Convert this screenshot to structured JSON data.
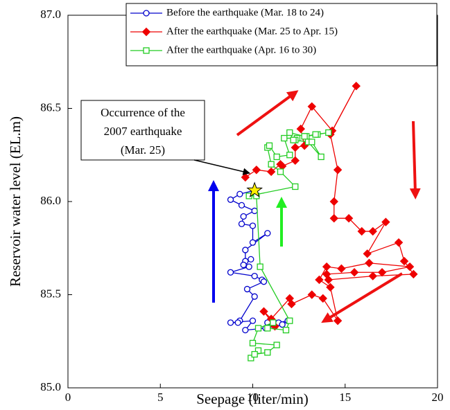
{
  "chart_data": {
    "type": "line",
    "xlabel": "Seepage (liter/min)",
    "ylabel": "Reservoir water level (EL.m)",
    "xlim": [
      0,
      20
    ],
    "xticks": [
      0,
      5,
      10,
      15,
      20
    ],
    "ylim": [
      85.0,
      87.0
    ],
    "yticks": [
      {
        "value": 85.0,
        "label": "85.0"
      },
      {
        "value": 85.5,
        "label": "85.5"
      },
      {
        "value": 86.0,
        "label": "86.0"
      },
      {
        "value": 86.5,
        "label": "86.5"
      },
      {
        "value": 87.0,
        "label": "87.0"
      }
    ],
    "annotation": {
      "lines": [
        "Occurrence of the",
        "2007 earthquake",
        "(Mar. 25)"
      ],
      "x": 10.1,
      "y": 86.06
    },
    "series": [
      {
        "name": "Before the earthquake (Mar. 18 to 24)",
        "color": "#0000cc",
        "marker": "circle",
        "x": [
          10.1,
          9.3,
          8.8,
          9.4,
          10.1,
          9.5,
          9.4,
          10.0,
          10.0,
          10.8,
          9.6,
          9.6,
          9.9,
          9.5,
          9.8,
          8.8,
          10.1,
          10.5,
          10.6,
          9.7,
          10.1,
          9.3,
          9.2,
          8.8,
          10.0,
          9.6,
          10.7,
          11.2,
          11.4,
          11.9,
          11.6,
          10.8
        ],
        "values": [
          86.06,
          86.04,
          86.01,
          85.98,
          85.95,
          85.92,
          85.88,
          85.87,
          85.78,
          85.83,
          85.74,
          85.68,
          85.69,
          85.66,
          85.65,
          85.62,
          85.6,
          85.58,
          85.57,
          85.53,
          85.49,
          85.36,
          85.35,
          85.35,
          85.36,
          85.31,
          85.32,
          85.33,
          85.35,
          85.36,
          85.34,
          85.35
        ]
      },
      {
        "name": "After the earthquake (Mar. 25 to Apr. 15)",
        "color": "#ee0000",
        "marker": "diamond",
        "x": [
          9.6,
          10.2,
          11.0,
          11.5,
          11.6,
          12.3,
          12.3,
          12.8,
          12.6,
          13.2,
          14.3,
          15.6,
          14.2,
          14.6,
          14.4,
          14.4,
          15.2,
          15.9,
          16.5,
          17.2,
          16.2,
          17.9,
          18.2,
          18.7,
          16.5,
          14.1,
          14.0,
          15.5,
          17.0,
          18.5,
          16.3,
          14.8,
          14.0,
          13.6,
          14.2,
          14.6,
          13.8,
          13.2,
          12.1,
          12.0,
          11.0,
          10.6,
          11.2
        ],
        "values": [
          86.13,
          86.17,
          86.16,
          86.2,
          86.19,
          86.22,
          86.29,
          86.3,
          86.39,
          86.51,
          86.38,
          86.62,
          86.36,
          86.17,
          86.0,
          85.91,
          85.91,
          85.84,
          85.84,
          85.89,
          85.72,
          85.78,
          85.68,
          85.61,
          85.6,
          85.58,
          85.61,
          85.62,
          85.62,
          85.65,
          85.67,
          85.64,
          85.65,
          85.58,
          85.54,
          85.36,
          85.48,
          85.5,
          85.45,
          85.48,
          85.37,
          85.41,
          85.33
        ]
      },
      {
        "name": "After the earthquake (Apr. 16 to 30)",
        "color": "#22cc22",
        "marker": "square",
        "x": [
          9.9,
          10.3,
          10.1,
          10.8,
          11.3,
          10.0,
          10.3,
          11.1,
          10.8,
          11.8,
          12.0,
          10.4,
          10.2,
          9.8,
          12.3,
          11.5,
          11.0,
          10.8,
          10.9,
          11.3,
          12.0,
          11.7,
          12.4,
          12.3,
          13.0,
          13.7,
          13.2,
          12.9,
          13.5,
          14.1,
          13.4,
          12.8,
          12.0,
          12.2
        ],
        "values": [
          85.16,
          85.2,
          85.18,
          85.19,
          85.23,
          85.24,
          85.32,
          85.35,
          85.32,
          85.31,
          85.36,
          85.65,
          86.03,
          86.03,
          86.08,
          86.16,
          86.2,
          86.29,
          86.3,
          86.24,
          86.25,
          86.34,
          86.34,
          86.33,
          86.32,
          86.24,
          86.32,
          86.35,
          86.36,
          86.37,
          86.36,
          86.35,
          86.37,
          86.33
        ]
      }
    ]
  }
}
